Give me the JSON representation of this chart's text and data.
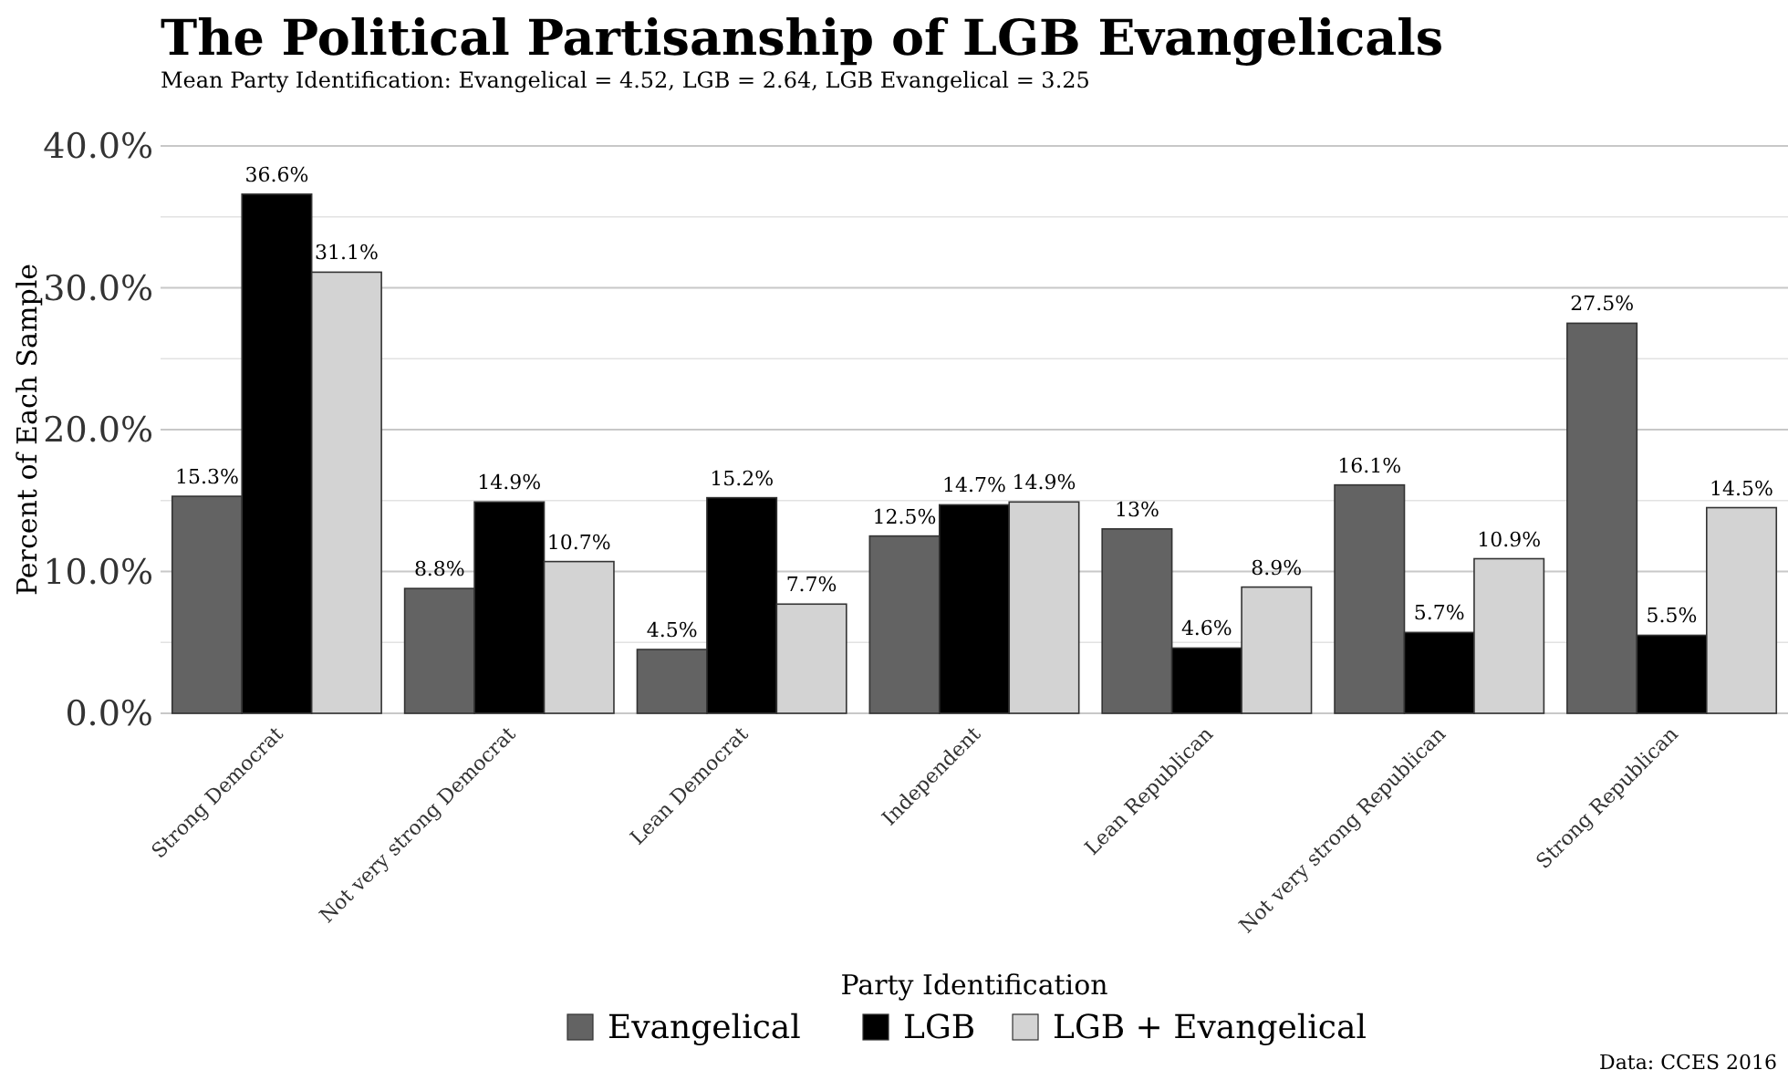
{
  "chart_data": {
    "type": "bar",
    "title": "The Political Partisanship of LGB Evangelicals",
    "subtitle": "Mean Party Identification: Evangelical = 4.52, LGB = 2.64, LGB Evangelical = 3.25",
    "xlabel": "Party Identification",
    "ylabel": "Percent of Each Sample",
    "annotations": [
      "Data: CCES 2016"
    ],
    "categories": [
      "Strong Democrat",
      "Not very strong Democrat",
      "Lean Democrat",
      "Independent",
      "Lean Republican",
      "Not very strong Republican",
      "Strong Republican"
    ],
    "series": [
      {
        "name": "Evangelical",
        "color": "#636363",
        "values": [
          15.3,
          8.8,
          4.5,
          12.5,
          13,
          16.1,
          27.5
        ],
        "value_labels": [
          "15.3%",
          "8.8%",
          "4.5%",
          "12.5%",
          "13%",
          "16.1%",
          "27.5%"
        ]
      },
      {
        "name": "LGB",
        "color": "#000000",
        "values": [
          36.6,
          14.9,
          15.2,
          14.7,
          4.6,
          5.7,
          5.5
        ],
        "value_labels": [
          "36.6%",
          "14.9%",
          "15.2%",
          "14.7%",
          "4.6%",
          "5.7%",
          "5.5%"
        ]
      },
      {
        "name": "LGB + Evangelical",
        "color": "#d3d3d3",
        "values": [
          31.1,
          10.7,
          7.7,
          14.9,
          8.9,
          10.9,
          14.5
        ],
        "value_labels": [
          "31.1%",
          "10.7%",
          "7.7%",
          "14.9%",
          "8.9%",
          "10.9%",
          "14.5%"
        ]
      }
    ],
    "ylim": [
      0,
      40
    ],
    "yticks": [
      {
        "value": 0,
        "label": "0.0%"
      },
      {
        "value": 5,
        "label": null
      },
      {
        "value": 10,
        "label": "10.0%"
      },
      {
        "value": 15,
        "label": null
      },
      {
        "value": 20,
        "label": "20.0%"
      },
      {
        "value": 25,
        "label": null
      },
      {
        "value": 30,
        "label": "30.0%"
      },
      {
        "value": 35,
        "label": null
      },
      {
        "value": 40,
        "label": "40.0%"
      }
    ],
    "grid": "y",
    "legend": "bottom"
  }
}
